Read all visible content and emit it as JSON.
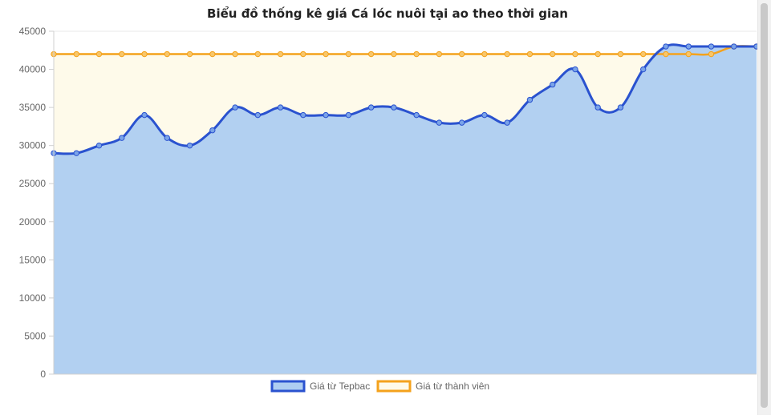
{
  "chart_data": {
    "type": "area",
    "title": "Biểu đồ thống kê giá Cá lóc nuôi tại ao theo thời gian",
    "xlabel": "",
    "ylabel": "",
    "ylim": [
      0,
      45000
    ],
    "y_ticks": [
      "0",
      "5000",
      "10000",
      "15000",
      "20000",
      "25000",
      "30000",
      "35000",
      "40000",
      "45000"
    ],
    "y_tick_values": [
      0,
      5000,
      10000,
      15000,
      20000,
      25000,
      30000,
      35000,
      40000,
      45000
    ],
    "grid": true,
    "legend_position": "bottom",
    "series": [
      {
        "name": "Giá từ Tepbac",
        "color": "#2a52cf",
        "fill": "#aecdf1",
        "values": [
          29000,
          29000,
          30000,
          31000,
          34000,
          31000,
          30000,
          32000,
          35000,
          34000,
          35000,
          34000,
          34000,
          34000,
          35000,
          35000,
          34000,
          33000,
          33000,
          34000,
          33000,
          36000,
          38000,
          40000,
          35000,
          35000,
          40000,
          43000,
          43000,
          43000,
          43000,
          43000
        ]
      },
      {
        "name": "Giá từ thành viên",
        "color": "#f4a21c",
        "fill": "#fefaea",
        "values": [
          42000,
          42000,
          42000,
          42000,
          42000,
          42000,
          42000,
          42000,
          42000,
          42000,
          42000,
          42000,
          42000,
          42000,
          42000,
          42000,
          42000,
          42000,
          42000,
          42000,
          42000,
          42000,
          42000,
          42000,
          42000,
          42000,
          42000,
          42000,
          42000,
          42000,
          43000,
          43000
        ]
      }
    ]
  }
}
